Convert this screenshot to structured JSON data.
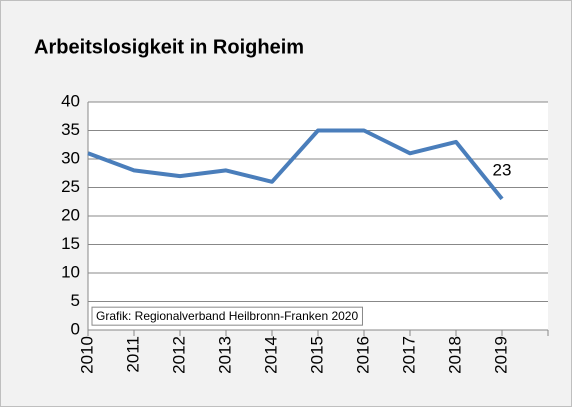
{
  "chart_data": {
    "type": "line",
    "title": "Arbeitslosigkeit in Roigheim",
    "source": "Grafik: Regionalverband Heilbronn-Franken 2020",
    "categories": [
      "2010",
      "2011",
      "2012",
      "2013",
      "2014",
      "2015",
      "2016",
      "2017",
      "2018",
      "2019"
    ],
    "series": [
      {
        "color": "#4a7ebb",
        "values": [
          31,
          28,
          27,
          28,
          26,
          35,
          35,
          31,
          33,
          23
        ]
      }
    ],
    "data_label": "last",
    "ylim": [
      0,
      40
    ],
    "yticks": [
      0,
      5,
      10,
      15,
      20,
      25,
      30,
      35,
      40
    ],
    "grid": true
  }
}
